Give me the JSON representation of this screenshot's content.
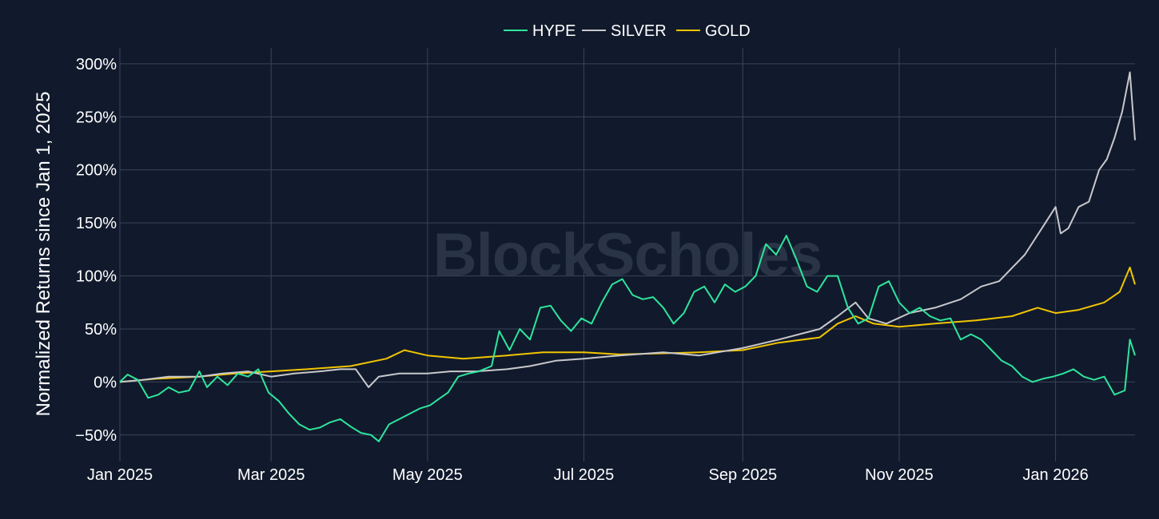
{
  "watermark": "BlockScholes",
  "colors": {
    "background": "#111a2c",
    "grid": "#3a4457",
    "HYPE": "#2ee59d",
    "SILVER": "#c8c8cc",
    "GOLD": "#f2c500"
  },
  "chart_data": {
    "type": "line",
    "title": "",
    "xlabel": "",
    "ylabel": "Normalized Returns since Jan 1, 2025",
    "x_range": [
      "2025-01-01",
      "2026-02-01"
    ],
    "ylim": [
      -75,
      315
    ],
    "y_ticks": [
      -50,
      0,
      50,
      100,
      150,
      200,
      250,
      300
    ],
    "y_tick_labels": [
      "−50%",
      "0%",
      "50%",
      "100%",
      "150%",
      "200%",
      "250%",
      "300%"
    ],
    "x_ticks": [
      "2025-01-01",
      "2025-03-01",
      "2025-05-01",
      "2025-07-01",
      "2025-09-01",
      "2025-11-01",
      "2026-01-01"
    ],
    "x_tick_labels": [
      "Jan 2025",
      "Mar 2025",
      "May 2025",
      "Jul 2025",
      "Sep 2025",
      "Nov 2025",
      "Jan 2026"
    ],
    "grid": true,
    "legend_position": "top-center",
    "series": [
      {
        "name": "HYPE",
        "points": [
          [
            "2025-01-01",
            0
          ],
          [
            "2025-01-04",
            7
          ],
          [
            "2025-01-08",
            2
          ],
          [
            "2025-01-12",
            -15
          ],
          [
            "2025-01-16",
            -12
          ],
          [
            "2025-01-20",
            -5
          ],
          [
            "2025-01-24",
            -10
          ],
          [
            "2025-01-28",
            -8
          ],
          [
            "2025-02-01",
            10
          ],
          [
            "2025-02-04",
            -5
          ],
          [
            "2025-02-08",
            5
          ],
          [
            "2025-02-12",
            -3
          ],
          [
            "2025-02-16",
            8
          ],
          [
            "2025-02-20",
            5
          ],
          [
            "2025-02-24",
            12
          ],
          [
            "2025-02-28",
            -10
          ],
          [
            "2025-03-04",
            -18
          ],
          [
            "2025-03-08",
            -30
          ],
          [
            "2025-03-12",
            -40
          ],
          [
            "2025-03-16",
            -45
          ],
          [
            "2025-03-20",
            -43
          ],
          [
            "2025-03-24",
            -38
          ],
          [
            "2025-03-28",
            -35
          ],
          [
            "2025-04-01",
            -42
          ],
          [
            "2025-04-05",
            -48
          ],
          [
            "2025-04-09",
            -50
          ],
          [
            "2025-04-12",
            -56
          ],
          [
            "2025-04-16",
            -40
          ],
          [
            "2025-04-20",
            -35
          ],
          [
            "2025-04-24",
            -30
          ],
          [
            "2025-04-28",
            -25
          ],
          [
            "2025-05-02",
            -22
          ],
          [
            "2025-05-06",
            -15
          ],
          [
            "2025-05-09",
            -10
          ],
          [
            "2025-05-13",
            5
          ],
          [
            "2025-05-17",
            8
          ],
          [
            "2025-05-21",
            10
          ],
          [
            "2025-05-26",
            15
          ],
          [
            "2025-05-29",
            48
          ],
          [
            "2025-06-02",
            30
          ],
          [
            "2025-06-06",
            50
          ],
          [
            "2025-06-10",
            40
          ],
          [
            "2025-06-14",
            70
          ],
          [
            "2025-06-18",
            72
          ],
          [
            "2025-06-22",
            58
          ],
          [
            "2025-06-26",
            48
          ],
          [
            "2025-06-30",
            60
          ],
          [
            "2025-07-04",
            55
          ],
          [
            "2025-07-08",
            75
          ],
          [
            "2025-07-12",
            92
          ],
          [
            "2025-07-16",
            97
          ],
          [
            "2025-07-20",
            82
          ],
          [
            "2025-07-24",
            78
          ],
          [
            "2025-07-28",
            80
          ],
          [
            "2025-08-01",
            70
          ],
          [
            "2025-08-05",
            55
          ],
          [
            "2025-08-09",
            65
          ],
          [
            "2025-08-13",
            85
          ],
          [
            "2025-08-17",
            90
          ],
          [
            "2025-08-21",
            75
          ],
          [
            "2025-08-25",
            92
          ],
          [
            "2025-08-29",
            85
          ],
          [
            "2025-09-02",
            90
          ],
          [
            "2025-09-06",
            100
          ],
          [
            "2025-09-10",
            130
          ],
          [
            "2025-09-14",
            120
          ],
          [
            "2025-09-18",
            138
          ],
          [
            "2025-09-22",
            115
          ],
          [
            "2025-09-26",
            90
          ],
          [
            "2025-09-30",
            85
          ],
          [
            "2025-10-04",
            100
          ],
          [
            "2025-10-08",
            100
          ],
          [
            "2025-10-12",
            70
          ],
          [
            "2025-10-16",
            55
          ],
          [
            "2025-10-20",
            60
          ],
          [
            "2025-10-24",
            90
          ],
          [
            "2025-10-28",
            95
          ],
          [
            "2025-11-01",
            75
          ],
          [
            "2025-11-05",
            65
          ],
          [
            "2025-11-09",
            70
          ],
          [
            "2025-11-13",
            62
          ],
          [
            "2025-11-17",
            58
          ],
          [
            "2025-11-21",
            60
          ],
          [
            "2025-11-25",
            40
          ],
          [
            "2025-11-29",
            45
          ],
          [
            "2025-12-03",
            40
          ],
          [
            "2025-12-07",
            30
          ],
          [
            "2025-12-11",
            20
          ],
          [
            "2025-12-15",
            15
          ],
          [
            "2025-12-19",
            5
          ],
          [
            "2025-12-23",
            0
          ],
          [
            "2025-12-27",
            3
          ],
          [
            "2025-12-31",
            5
          ],
          [
            "2026-01-04",
            8
          ],
          [
            "2026-01-08",
            12
          ],
          [
            "2026-01-12",
            5
          ],
          [
            "2026-01-16",
            2
          ],
          [
            "2026-01-20",
            5
          ],
          [
            "2026-01-24",
            -12
          ],
          [
            "2026-01-28",
            -8
          ],
          [
            "2026-01-30",
            40
          ],
          [
            "2026-02-01",
            25
          ]
        ]
      },
      {
        "name": "SILVER",
        "points": [
          [
            "2025-01-01",
            0
          ],
          [
            "2025-01-10",
            2
          ],
          [
            "2025-01-20",
            5
          ],
          [
            "2025-02-01",
            5
          ],
          [
            "2025-02-10",
            8
          ],
          [
            "2025-02-20",
            10
          ],
          [
            "2025-03-01",
            5
          ],
          [
            "2025-03-10",
            8
          ],
          [
            "2025-03-20",
            10
          ],
          [
            "2025-03-28",
            12
          ],
          [
            "2025-04-03",
            12
          ],
          [
            "2025-04-08",
            -5
          ],
          [
            "2025-04-12",
            5
          ],
          [
            "2025-04-20",
            8
          ],
          [
            "2025-05-01",
            8
          ],
          [
            "2025-05-10",
            10
          ],
          [
            "2025-05-20",
            10
          ],
          [
            "2025-06-01",
            12
          ],
          [
            "2025-06-10",
            15
          ],
          [
            "2025-06-20",
            20
          ],
          [
            "2025-07-01",
            22
          ],
          [
            "2025-07-15",
            25
          ],
          [
            "2025-08-01",
            28
          ],
          [
            "2025-08-15",
            25
          ],
          [
            "2025-09-01",
            32
          ],
          [
            "2025-09-15",
            40
          ],
          [
            "2025-10-01",
            50
          ],
          [
            "2025-10-08",
            62
          ],
          [
            "2025-10-15",
            75
          ],
          [
            "2025-10-20",
            60
          ],
          [
            "2025-10-27",
            55
          ],
          [
            "2025-11-05",
            65
          ],
          [
            "2025-11-15",
            70
          ],
          [
            "2025-11-25",
            78
          ],
          [
            "2025-12-03",
            90
          ],
          [
            "2025-12-10",
            95
          ],
          [
            "2025-12-20",
            120
          ],
          [
            "2025-12-28",
            150
          ],
          [
            "2026-01-01",
            165
          ],
          [
            "2026-01-03",
            140
          ],
          [
            "2026-01-06",
            145
          ],
          [
            "2026-01-10",
            165
          ],
          [
            "2026-01-14",
            170
          ],
          [
            "2026-01-18",
            200
          ],
          [
            "2026-01-21",
            210
          ],
          [
            "2026-01-24",
            230
          ],
          [
            "2026-01-27",
            255
          ],
          [
            "2026-01-30",
            292
          ],
          [
            "2026-02-01",
            228
          ]
        ]
      },
      {
        "name": "GOLD",
        "points": [
          [
            "2025-01-01",
            0
          ],
          [
            "2025-01-15",
            3
          ],
          [
            "2025-02-01",
            5
          ],
          [
            "2025-02-15",
            8
          ],
          [
            "2025-03-01",
            10
          ],
          [
            "2025-03-15",
            12
          ],
          [
            "2025-04-01",
            15
          ],
          [
            "2025-04-15",
            22
          ],
          [
            "2025-04-22",
            30
          ],
          [
            "2025-05-01",
            25
          ],
          [
            "2025-05-15",
            22
          ],
          [
            "2025-06-01",
            25
          ],
          [
            "2025-06-15",
            28
          ],
          [
            "2025-07-01",
            28
          ],
          [
            "2025-07-15",
            26
          ],
          [
            "2025-08-01",
            27
          ],
          [
            "2025-08-15",
            28
          ],
          [
            "2025-09-01",
            30
          ],
          [
            "2025-09-15",
            37
          ],
          [
            "2025-10-01",
            42
          ],
          [
            "2025-10-08",
            55
          ],
          [
            "2025-10-15",
            62
          ],
          [
            "2025-10-22",
            55
          ],
          [
            "2025-11-01",
            52
          ],
          [
            "2025-11-15",
            55
          ],
          [
            "2025-12-01",
            58
          ],
          [
            "2025-12-15",
            62
          ],
          [
            "2025-12-25",
            70
          ],
          [
            "2026-01-01",
            65
          ],
          [
            "2026-01-10",
            68
          ],
          [
            "2026-01-20",
            75
          ],
          [
            "2026-01-26",
            85
          ],
          [
            "2026-01-30",
            108
          ],
          [
            "2026-02-01",
            92
          ]
        ]
      }
    ]
  }
}
